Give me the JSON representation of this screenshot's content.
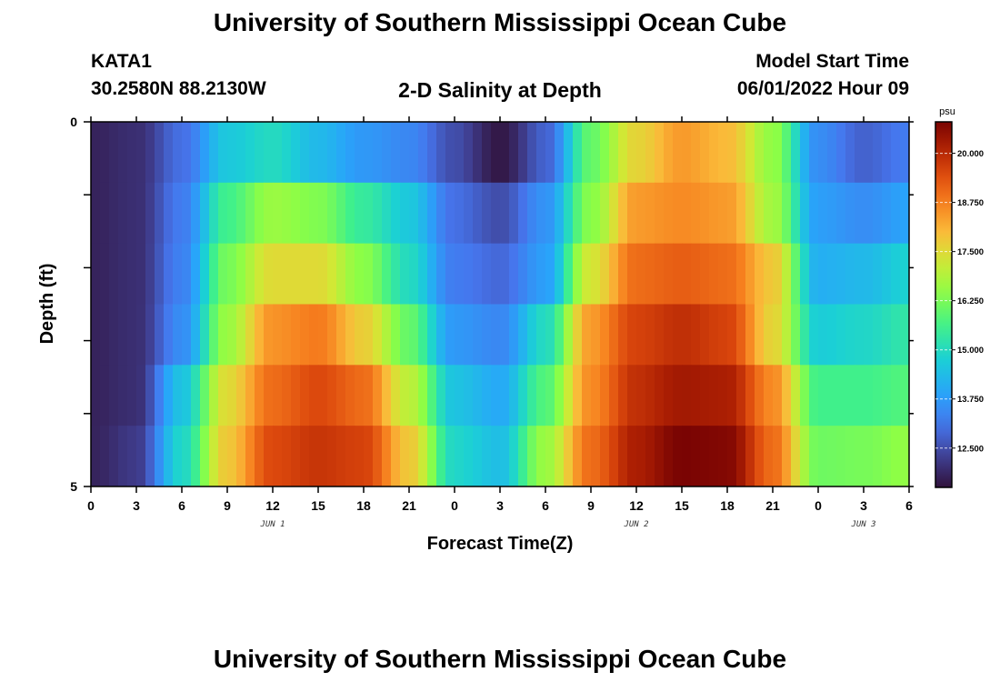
{
  "header": {
    "title": "University of Southern Mississippi Ocean Cube",
    "station": "KATA1",
    "coords": "30.2580N  88.2130W",
    "plot_title": "2-D Salinity at Depth",
    "model_label": "Model Start Time",
    "model_time": "06/01/2022 Hour 09"
  },
  "footer": {
    "title": "University of Southern Mississippi Ocean Cube"
  },
  "chart_data": {
    "type": "heatmap",
    "title": "2-D Salinity at Depth",
    "xlabel": "Forecast Time(Z)",
    "ylabel": "Depth (ft)",
    "x_tick_labels": [
      "0",
      "3",
      "6",
      "9",
      "12",
      "15",
      "18",
      "21",
      "0",
      "3",
      "6",
      "9",
      "12",
      "15",
      "18",
      "21",
      "0",
      "3",
      "6"
    ],
    "day_labels": [
      "JUN 1",
      "JUN 2",
      "JUN 3"
    ],
    "y_tick_labels": [
      "0",
      "5"
    ],
    "ylim": [
      0,
      5
    ],
    "colorbar": {
      "unit": "psu",
      "range": [
        11.5,
        20.8
      ],
      "tick_labels": [
        "20.000",
        "18.750",
        "17.500",
        "16.250",
        "15.000",
        "13.750",
        "12.500"
      ],
      "tick_values": [
        20.0,
        18.75,
        17.5,
        16.25,
        15.0,
        13.75,
        12.5
      ]
    },
    "layers": [
      {
        "depth": 0,
        "time_hours": [
          0,
          3,
          6,
          9,
          12,
          15,
          18,
          21,
          24,
          27,
          30,
          33,
          36,
          39,
          42,
          45,
          48,
          51,
          54
        ],
        "values": [
          11.8,
          12.0,
          13.0,
          14.6,
          15.0,
          14.3,
          13.7,
          13.4,
          12.5,
          11.6,
          12.8,
          16.0,
          17.6,
          18.4,
          18.0,
          16.5,
          13.5,
          12.8,
          13.2
        ]
      },
      {
        "depth": 1,
        "time_hours": [
          0,
          3,
          6,
          9,
          12,
          15,
          18,
          21,
          24,
          27,
          30,
          33,
          36,
          39,
          42,
          45,
          48,
          51,
          54
        ],
        "values": [
          11.8,
          12.0,
          13.2,
          15.6,
          16.6,
          16.3,
          15.4,
          14.6,
          13.0,
          12.5,
          13.6,
          16.4,
          18.4,
          18.6,
          18.4,
          16.7,
          13.8,
          13.5,
          13.9
        ]
      },
      {
        "depth": 2,
        "time_hours": [
          0,
          3,
          6,
          9,
          12,
          15,
          18,
          21,
          24,
          27,
          30,
          33,
          36,
          39,
          42,
          45,
          48,
          51,
          54
        ],
        "values": [
          11.8,
          12.0,
          13.3,
          16.2,
          17.5,
          17.5,
          16.4,
          15.0,
          13.2,
          12.9,
          13.8,
          17.3,
          19.0,
          19.2,
          19.0,
          17.8,
          14.1,
          14.3,
          14.8
        ]
      },
      {
        "depth": 3,
        "time_hours": [
          0,
          3,
          6,
          9,
          12,
          15,
          18,
          21,
          24,
          27,
          30,
          33,
          36,
          39,
          42,
          45,
          48,
          51,
          54
        ],
        "values": [
          11.8,
          12.0,
          13.5,
          16.6,
          18.5,
          18.8,
          17.7,
          16.0,
          13.7,
          13.4,
          15.0,
          18.4,
          19.6,
          19.9,
          19.6,
          17.6,
          14.7,
          14.9,
          15.3
        ]
      },
      {
        "depth": 4,
        "time_hours": [
          0,
          3,
          6,
          9,
          12,
          15,
          18,
          21,
          24,
          27,
          30,
          33,
          36,
          39,
          42,
          45,
          48,
          51,
          54
        ],
        "values": [
          11.8,
          12.0,
          14.5,
          17.5,
          19.0,
          19.5,
          19.0,
          17.0,
          14.5,
          14.0,
          15.8,
          18.6,
          19.9,
          20.3,
          20.2,
          18.6,
          15.6,
          15.6,
          15.8
        ]
      },
      {
        "depth": 5,
        "time_hours": [
          0,
          3,
          6,
          9,
          12,
          15,
          18,
          21,
          24,
          27,
          30,
          33,
          36,
          39,
          42,
          45,
          48,
          51,
          54
        ],
        "values": [
          11.8,
          12.2,
          14.9,
          17.8,
          19.5,
          19.8,
          19.6,
          17.8,
          14.9,
          14.4,
          16.6,
          19.0,
          20.2,
          20.8,
          20.7,
          19.0,
          16.1,
          16.2,
          16.5
        ]
      }
    ]
  }
}
